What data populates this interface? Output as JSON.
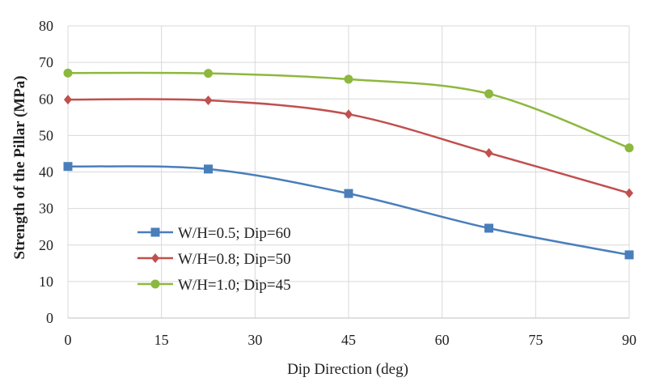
{
  "chart_data": {
    "type": "line",
    "title": "",
    "xlabel": "Dip Direction (deg)",
    "ylabel": "Strength of the Pillar (MPa)",
    "xlim": [
      0,
      90
    ],
    "ylim": [
      0,
      80
    ],
    "xticks": [
      0,
      15,
      30,
      45,
      60,
      75,
      90
    ],
    "yticks": [
      0,
      10,
      20,
      30,
      40,
      50,
      60,
      70,
      80
    ],
    "grid": true,
    "legend_position": "bottom-left",
    "x": [
      0,
      22.5,
      45,
      67.5,
      90
    ],
    "series": [
      {
        "name": "W/H=0.5; Dip=60",
        "color": "#4a7ebb",
        "marker": "square",
        "values": [
          41.5,
          40.8,
          34.1,
          24.6,
          17.3
        ]
      },
      {
        "name": "W/H=0.8; Dip=50",
        "color": "#c0504d",
        "marker": "diamond",
        "values": [
          59.8,
          59.6,
          55.8,
          45.2,
          34.2
        ]
      },
      {
        "name": "W/H=1.0; Dip=45",
        "color": "#8db83e",
        "marker": "circle",
        "values": [
          67.1,
          67.0,
          65.4,
          61.4,
          46.6
        ]
      }
    ]
  }
}
